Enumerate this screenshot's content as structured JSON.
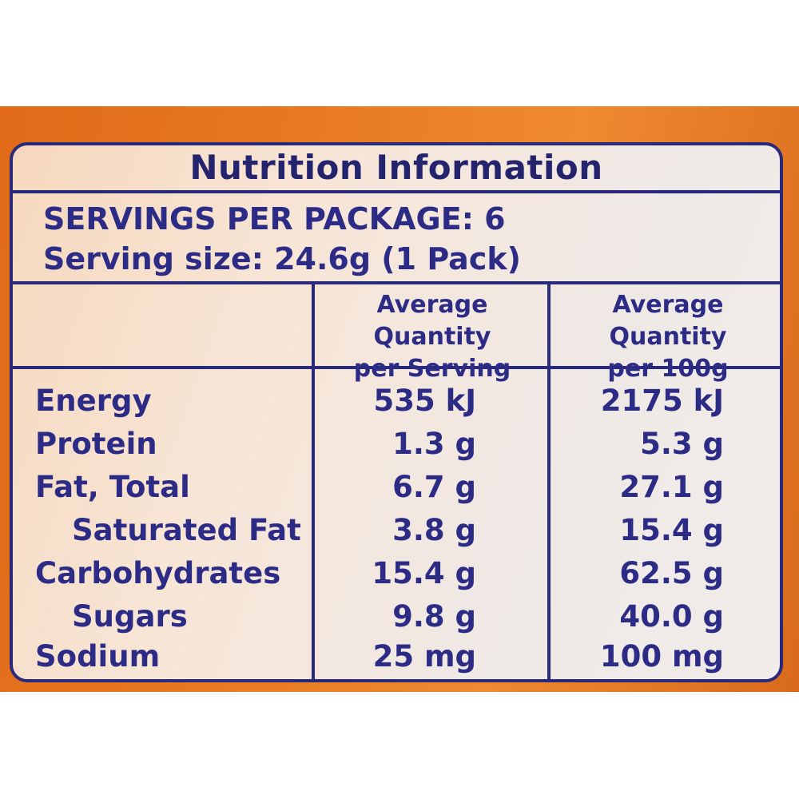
{
  "panel": {
    "title": "Nutrition Information",
    "servings_per_package": "SERVINGS PER PACKAGE: 6",
    "serving_size": "Serving size: 24.6g (1 Pack)",
    "columns": [
      {
        "line1": "Average Quantity",
        "line2": "per Serving"
      },
      {
        "line1": "Average Quantity",
        "line2": "per 100g"
      }
    ],
    "rows": [
      {
        "name": "Energy",
        "per_serving": "535 kJ",
        "per_100g": "2175 kJ"
      },
      {
        "name": "Protein",
        "per_serving": "1.3 g",
        "per_100g": "5.3 g"
      },
      {
        "name": "Fat, Total",
        "per_serving": "6.7 g",
        "per_100g": "27.1 g"
      },
      {
        "name": "Saturated Fat",
        "per_serving": "3.8 g",
        "per_100g": "15.4 g"
      },
      {
        "name": "Carbohydrates",
        "per_serving": "15.4 g",
        "per_100g": "62.5 g"
      },
      {
        "name": "Sugars",
        "per_serving": "9.8 g",
        "per_100g": "40.0 g"
      },
      {
        "name": "Sodium",
        "per_serving": "25 mg",
        "per_100g": "100 mg"
      }
    ]
  },
  "colors": {
    "ink": "#2a2a82",
    "package": "#e87a22",
    "label_bg": "#f1e6df"
  }
}
